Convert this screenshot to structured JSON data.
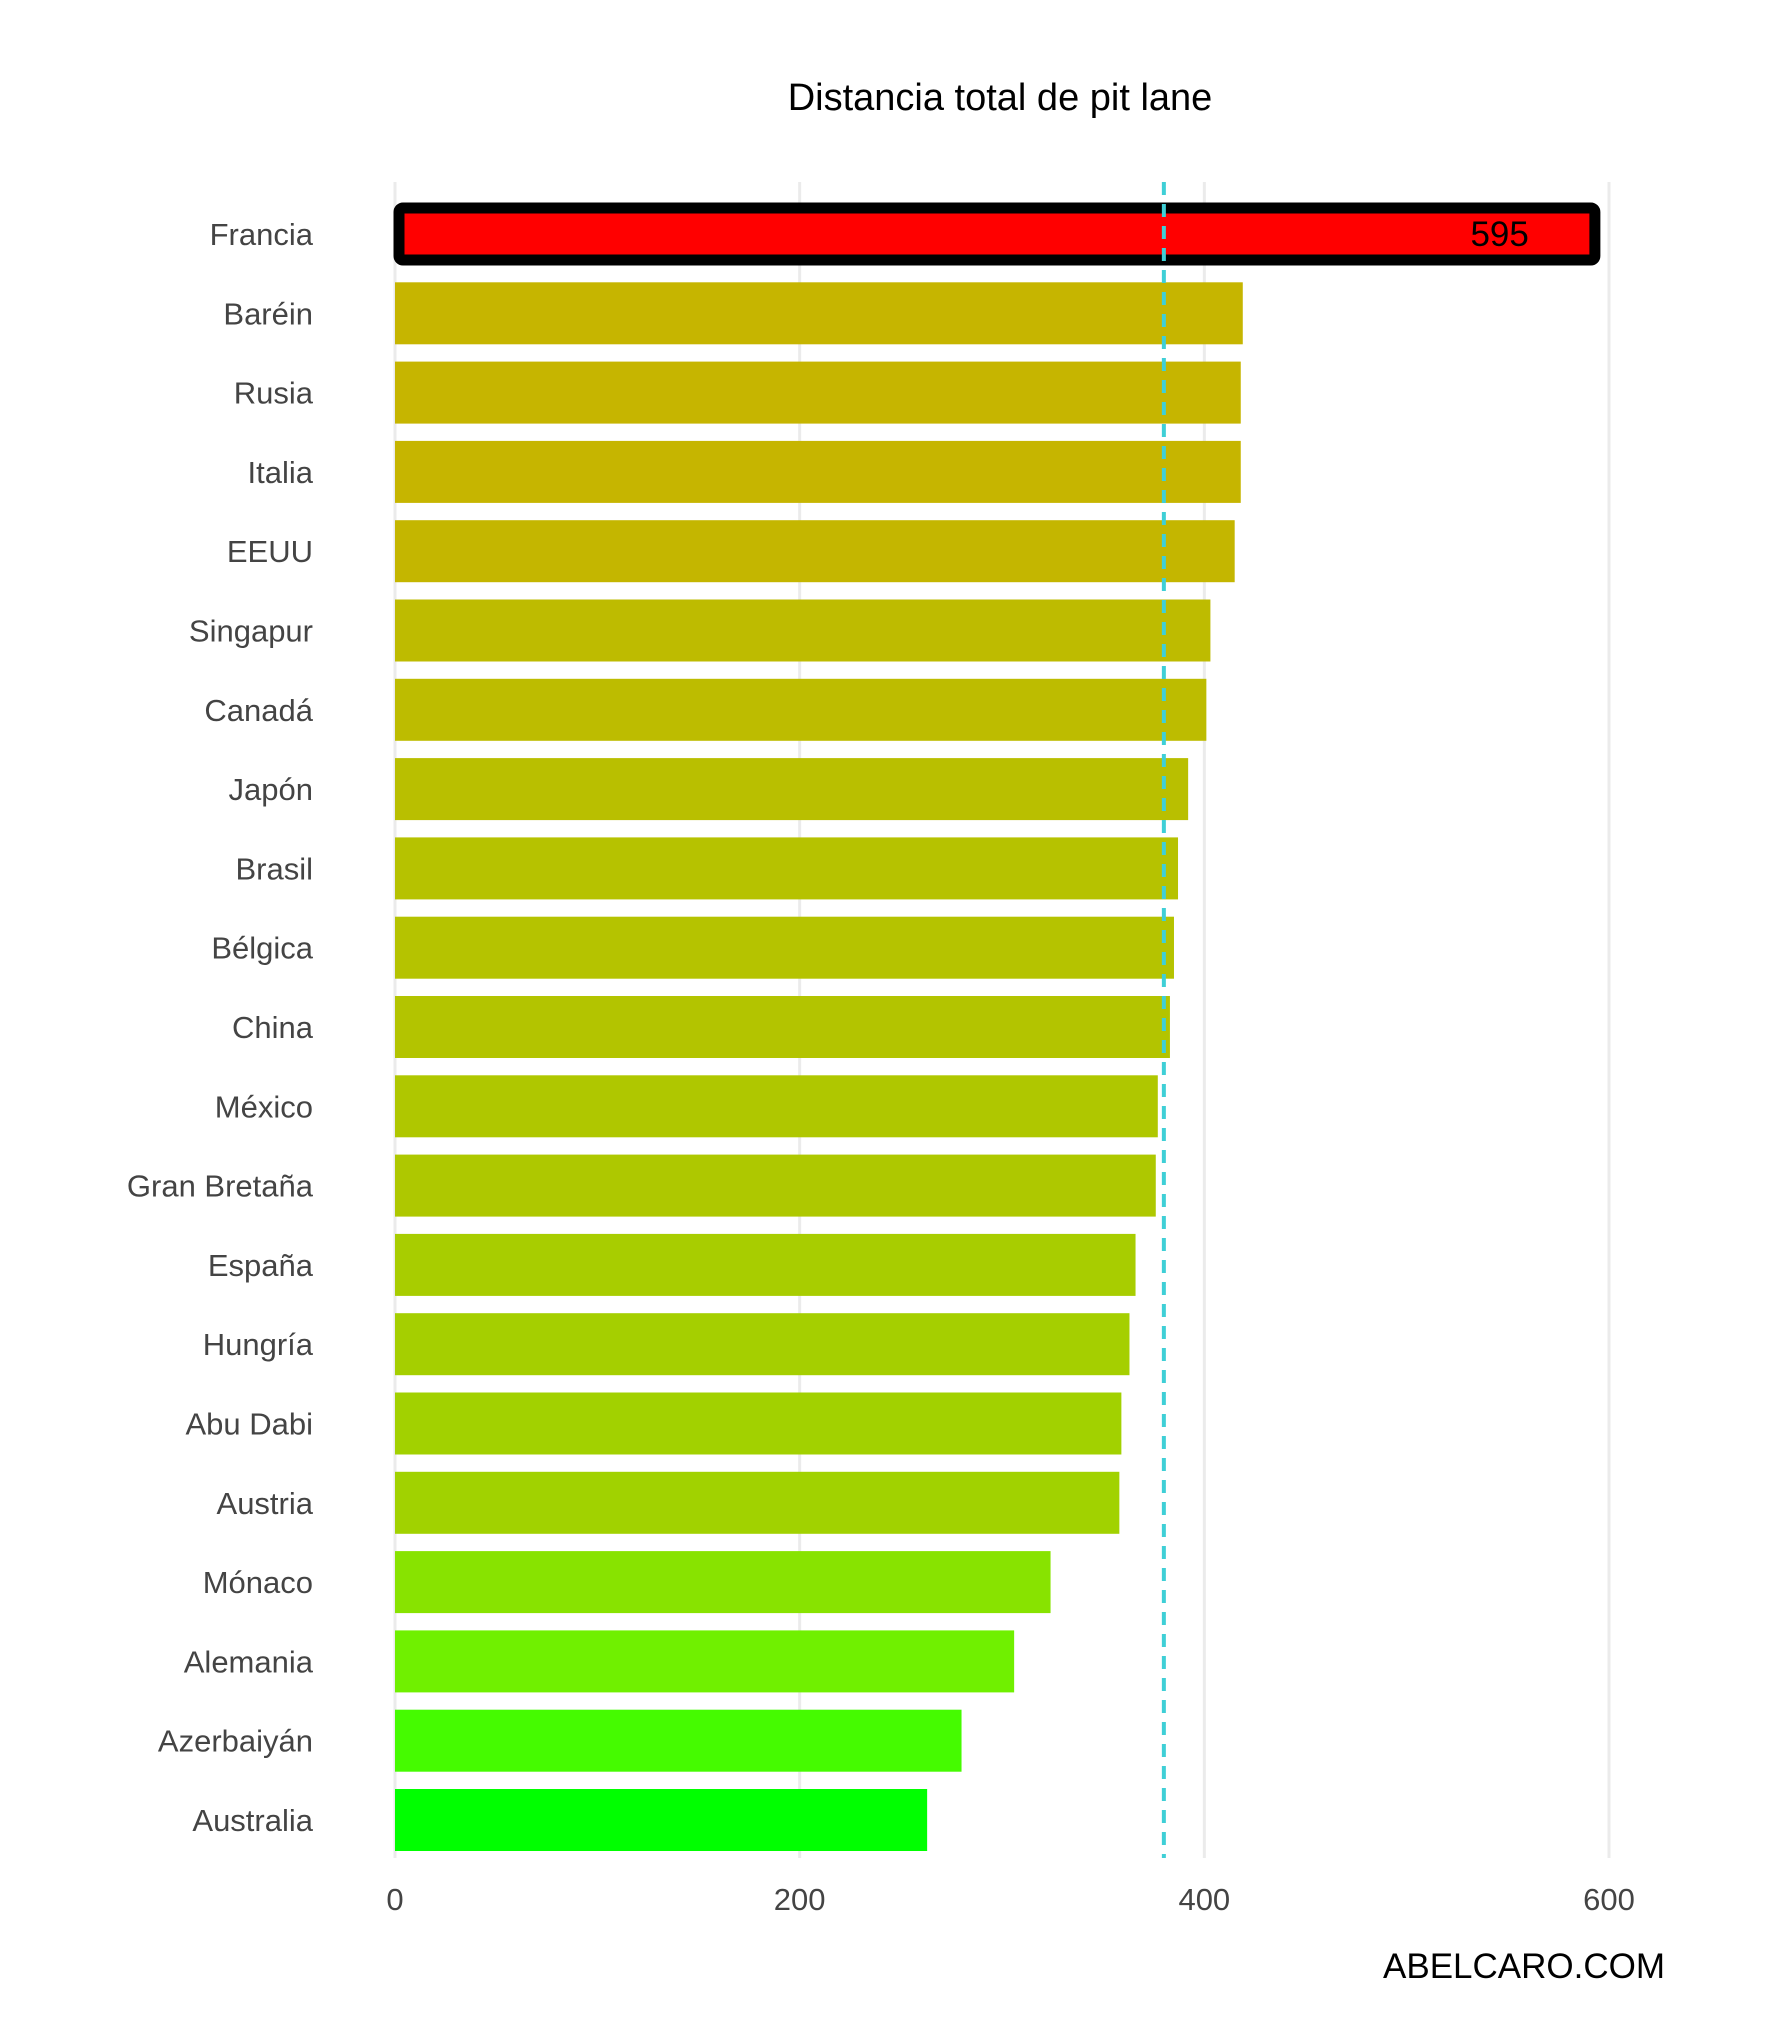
{
  "chart_data": {
    "type": "bar",
    "orientation": "horizontal",
    "title": "Distancia total de pit lane",
    "caption": "ABELCARO.COM",
    "xlabel": "",
    "ylabel": "",
    "xlim": [
      0,
      600
    ],
    "x_ticks": [
      0,
      200,
      400,
      600
    ],
    "grid": "vertical",
    "reference_line": {
      "value": 380,
      "style": "dashed",
      "color": "#3fcfd6"
    },
    "categories": [
      "Francia",
      "Baréin",
      "Rusia",
      "Italia",
      "EEUU",
      "Singapur",
      "Canadá",
      "Japón",
      "Brasil",
      "Bélgica",
      "China",
      "México",
      "Gran Bretaña",
      "España",
      "Hungría",
      "Abu Dabi",
      "Austria",
      "Mónaco",
      "Alemania",
      "Azerbaiyán",
      "Australia"
    ],
    "values": [
      595,
      419,
      418,
      418,
      415,
      403,
      401,
      392,
      387,
      385,
      383,
      377,
      376,
      366,
      363,
      359,
      358,
      324,
      306,
      280,
      263
    ],
    "colors": [
      "#ff0000",
      "#c6b500",
      "#c6b500",
      "#c6b500",
      "#c4b600",
      "#bebb00",
      "#bdbc00",
      "#b9bf00",
      "#b6c200",
      "#b5c300",
      "#b3c400",
      "#afc700",
      "#aec800",
      "#a8cd00",
      "#a5cf00",
      "#a2d100",
      "#a1d200",
      "#88e300",
      "#70f000",
      "#45fb00",
      "#00ff00"
    ],
    "highlight": {
      "category": "Francia",
      "label": "595",
      "outline_color": "#000000"
    }
  }
}
